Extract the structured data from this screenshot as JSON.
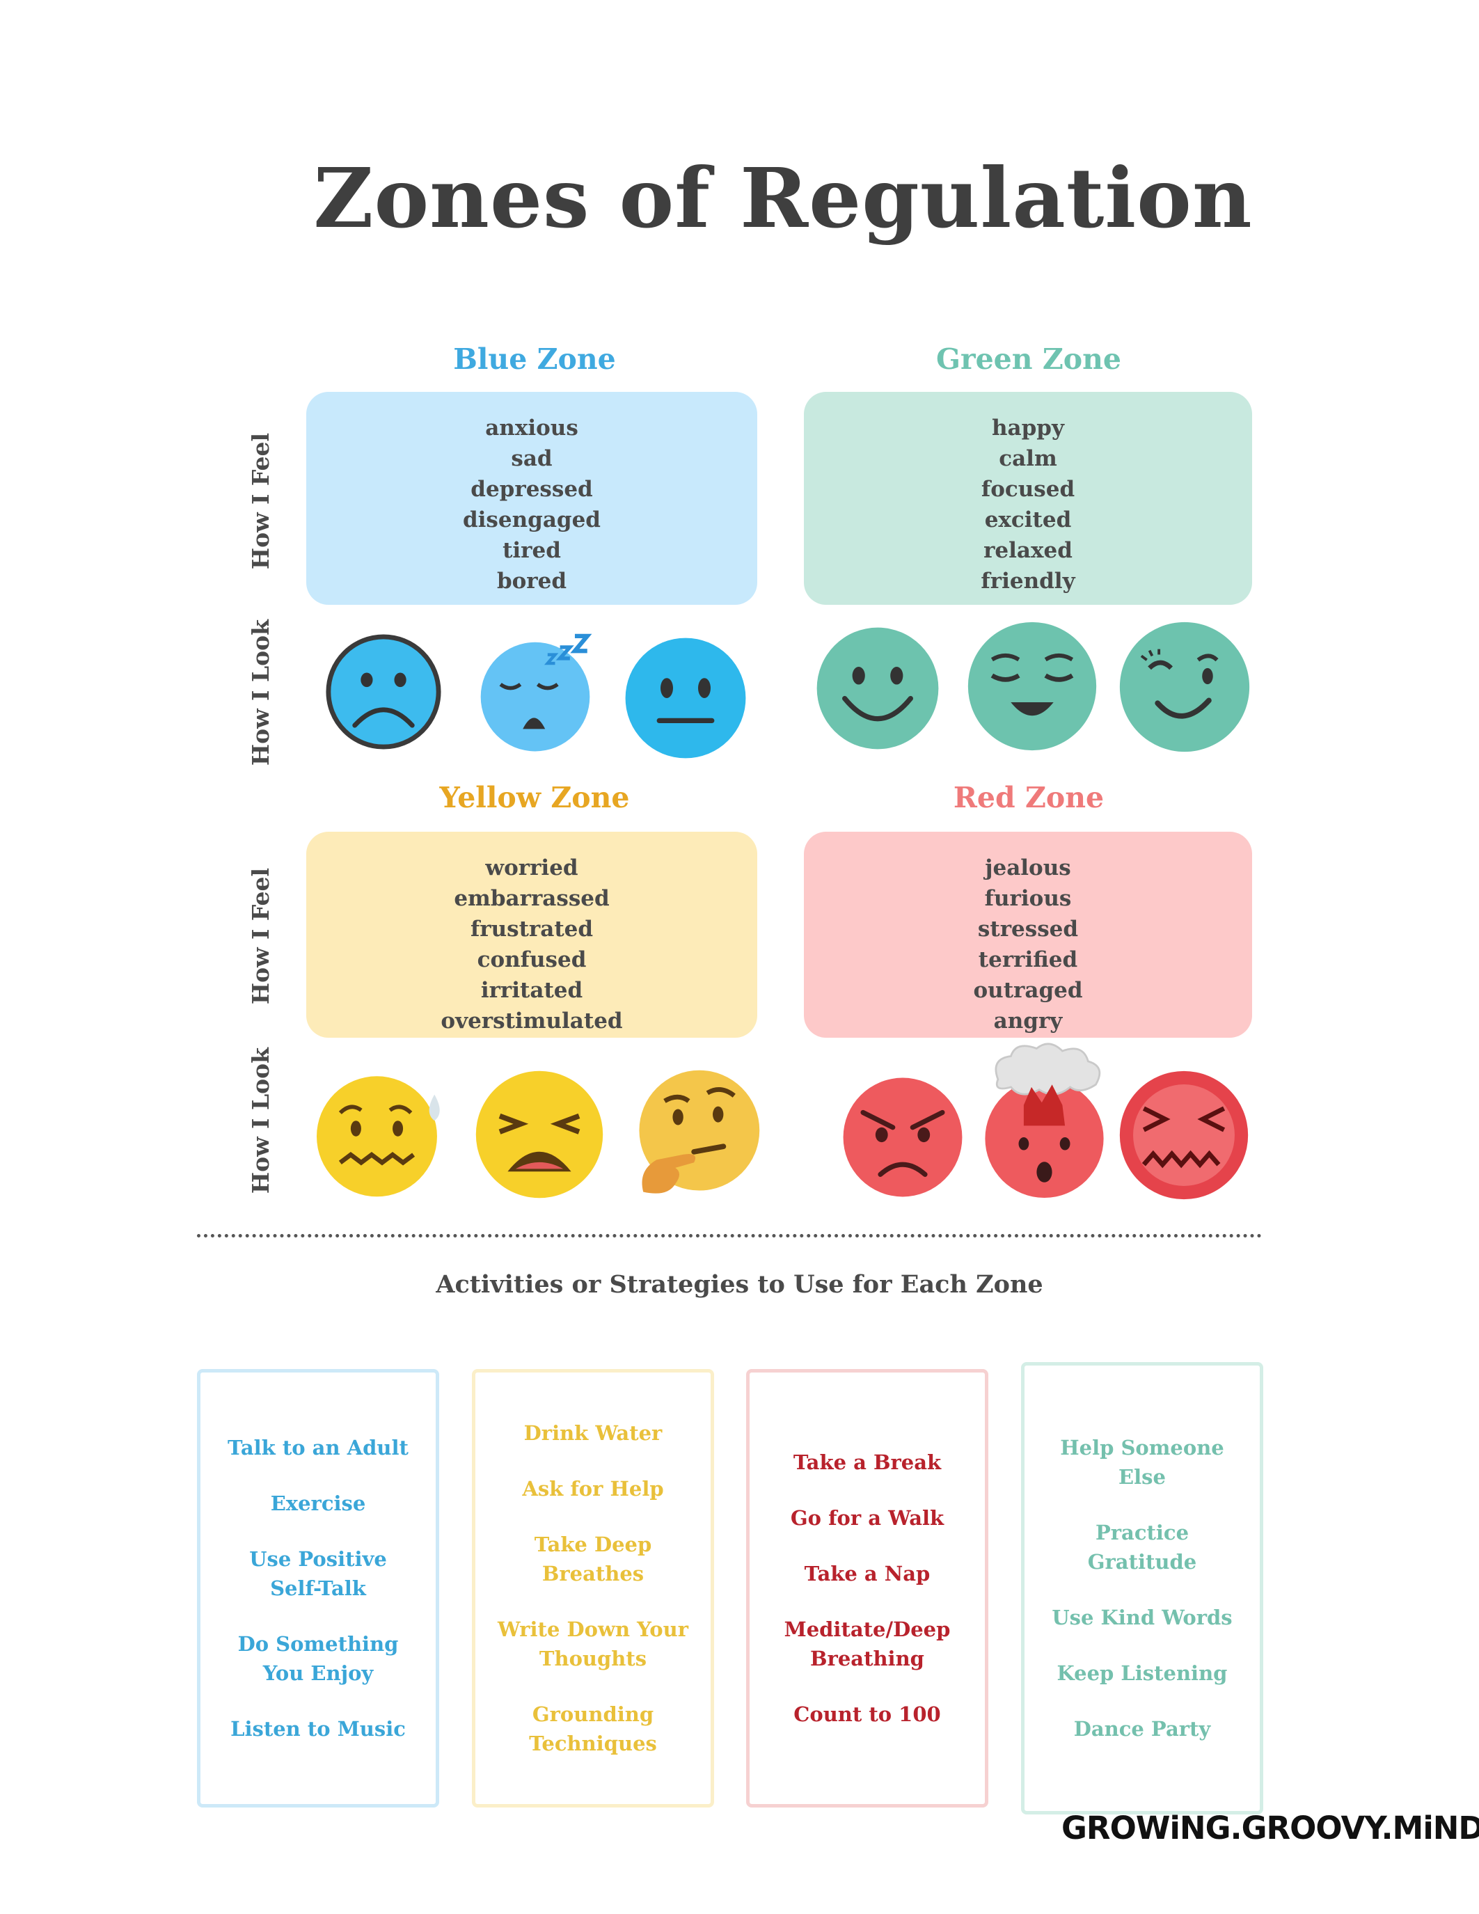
{
  "title": "Zones of Regulation",
  "labels": {
    "feel": "How I Feel",
    "look": "How I Look"
  },
  "zones": {
    "blue": {
      "name": "Blue Zone",
      "color": "#3fa9e0",
      "box": "#c8e9fc",
      "feelings": [
        "anxious",
        "sad",
        "depressed",
        "disengaged",
        "tired",
        "bored"
      ]
    },
    "green": {
      "name": "Green Zone",
      "color": "#6ec3b0",
      "box": "#c8e9df",
      "feelings": [
        "happy",
        "calm",
        "focused",
        "excited",
        "relaxed",
        "friendly"
      ]
    },
    "yellow": {
      "name": "Yellow Zone",
      "color": "#e7a622",
      "box": "#fdebb8",
      "feelings": [
        "worried",
        "embarrassed",
        "frustrated",
        "confused",
        "irritated",
        "overstimulated"
      ]
    },
    "red": {
      "name": "Red Zone",
      "color": "#ef7a7a",
      "box": "#fdc9c9",
      "feelings": [
        "jealous",
        "furious",
        "stressed",
        "terrified",
        "outraged",
        "angry"
      ]
    }
  },
  "faces": {
    "blue": [
      "frowning-face-icon",
      "sleeping-face-icon",
      "neutral-face-icon"
    ],
    "green": [
      "smiling-face-icon",
      "relieved-face-icon",
      "winking-face-icon"
    ],
    "yellow": [
      "anxious-sweat-face-icon",
      "tired-face-icon",
      "thinking-face-icon"
    ],
    "red": [
      "angry-face-icon",
      "exploding-head-icon",
      "confounded-face-icon"
    ]
  },
  "activities_title": "Activities or Strategies to Use for Each Zone",
  "activities": [
    {
      "zone": "blue",
      "color": "#3aa6d8",
      "border": "#cde9f8",
      "items": [
        "Talk to an Adult",
        "Exercise",
        "Use Positive Self-Talk",
        "Do Something You Enjoy",
        "Listen to Music"
      ]
    },
    {
      "zone": "yellow",
      "color": "#e9c03a",
      "border": "#fbefc9",
      "items": [
        "Drink Water",
        "Ask for Help",
        "Take Deep Breathes",
        "Write Down Your Thoughts",
        "Grounding Techniques"
      ]
    },
    {
      "zone": "red",
      "color": "#b8222c",
      "border": "#f6d1d1",
      "items": [
        "Take a Break",
        "Go for a Walk",
        "Take a Nap",
        "Meditate/Deep Breathing",
        "Count to 100"
      ]
    },
    {
      "zone": "green",
      "color": "#74c0ad",
      "border": "#d4eee6",
      "items": [
        "Help Someone Else",
        "Practice Gratitude",
        "Use Kind Words",
        "Keep Listening",
        "Dance Party"
      ]
    }
  ],
  "brand": "GROWiNG.GROOVY.MiNDS."
}
